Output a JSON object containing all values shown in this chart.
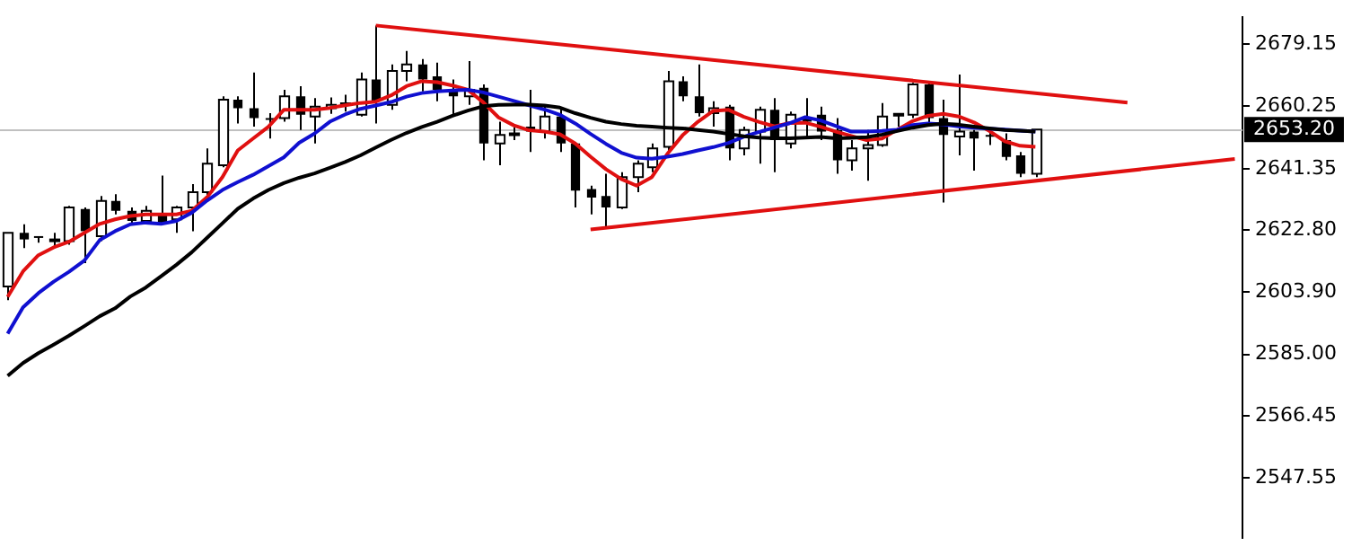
{
  "chart_data": {
    "type": "candlestick",
    "colors": [
      "#ffffff",
      "#000000",
      "#000000",
      "#ffffff",
      "#ffffff",
      "#000000",
      "#ffffff",
      "#000000",
      "#000000",
      "#ffffff",
      "#000000",
      "#ffffff",
      "#ffffff",
      "#ffffff",
      "#ffffff",
      "#000000",
      "#000000",
      "#000000",
      "#ffffff",
      "#000000",
      "#ffffff",
      "#ffffff",
      "#ffffff",
      "#ffffff",
      "#000000",
      "#ffffff",
      "#ffffff",
      "#000000",
      "#000000",
      "#000000",
      "#ffffff",
      "#000000",
      "#ffffff",
      "#ffffff",
      "#000000",
      "#ffffff",
      "#000000",
      "#000000",
      "#000000",
      "#000000",
      "#ffffff",
      "#ffffff",
      "#ffffff",
      "#ffffff",
      "#000000",
      "#000000",
      "#ffffff",
      "#000000",
      "#ffffff",
      "#ffffff",
      "#000000",
      "#ffffff",
      "#000000",
      "#000000",
      "#000000",
      "#ffffff",
      "#ffffff",
      "#ffffff",
      "#ffffff",
      "#ffffff",
      "#000000",
      "#000000",
      "#ffffff",
      "#000000",
      "#000000",
      "#000000",
      "#000000",
      "#ffffff",
      null,
      null,
      null,
      null,
      null,
      null,
      null,
      null,
      null,
      null,
      null,
      null,
      null
    ],
    "categories": [
      null,
      null,
      null,
      null,
      null,
      null,
      null,
      null,
      null,
      null,
      null,
      null,
      null,
      null,
      null,
      null,
      null,
      null,
      null,
      null,
      null,
      null,
      null,
      null,
      null,
      null,
      null,
      null,
      null,
      null,
      null,
      null,
      null,
      null,
      null,
      null,
      null,
      null,
      null,
      null,
      null,
      null,
      null,
      null,
      null,
      null,
      null,
      null,
      null,
      null,
      null,
      null,
      null,
      null,
      null,
      null,
      null,
      null,
      null,
      null,
      null,
      null,
      null,
      null,
      null,
      null,
      null,
      null,
      null,
      null,
      null,
      null,
      null,
      null,
      null,
      null,
      null,
      null,
      null,
      null,
      null
    ],
    "ohlc": [
      [
        2605.6,
        2621.9,
        2601.5,
        2621.9
      ],
      [
        2621.9,
        2624.5,
        2617.3,
        2619.9
      ],
      [
        2620.9,
        2620.9,
        2618.9,
        2620.4
      ],
      [
        2619.4,
        2621.9,
        2617.3,
        2619.9
      ],
      [
        2619.4,
        2630.1,
        2618.3,
        2629.6
      ],
      [
        2629.1,
        2629.6,
        2612.7,
        2622.4
      ],
      [
        2620.9,
        2633.1,
        2619.4,
        2631.6
      ],
      [
        2631.6,
        2633.6,
        2627.5,
        2628.6
      ],
      [
        2628.6,
        2629.6,
        2624.5,
        2625.5
      ],
      [
        2625.5,
        2630.1,
        2624.5,
        2628.6
      ],
      [
        2627.5,
        2639.3,
        2624.5,
        2625.0
      ],
      [
        2626.0,
        2630.1,
        2621.9,
        2629.6
      ],
      [
        2629.6,
        2636.7,
        2622.4,
        2634.2
      ],
      [
        2634.2,
        2647.5,
        2633.1,
        2642.9
      ],
      [
        2642.4,
        2663.3,
        2641.8,
        2662.3
      ],
      [
        2662.3,
        2663.3,
        2655.1,
        2659.7
      ],
      [
        2659.7,
        2670.5,
        2654.1,
        2656.7
      ],
      [
        2656.7,
        2658.2,
        2650.5,
        2656.2
      ],
      [
        2656.7,
        2665.3,
        2655.6,
        2663.3
      ],
      [
        2663.3,
        2666.4,
        2653.1,
        2657.7
      ],
      [
        2657.2,
        2662.8,
        2649.0,
        2660.2
      ],
      [
        2659.7,
        2663.0,
        2658.0,
        2660.7
      ],
      [
        2660.7,
        2663.8,
        2658.7,
        2661.2
      ],
      [
        2657.7,
        2670.5,
        2657.2,
        2668.4
      ],
      [
        2668.4,
        2684.8,
        2655.1,
        2661.8
      ],
      [
        2660.7,
        2673.0,
        2659.2,
        2671.0
      ],
      [
        2671.0,
        2677.1,
        2667.9,
        2673.0
      ],
      [
        2673.0,
        2674.6,
        2664.8,
        2668.4
      ],
      [
        2669.4,
        2673.5,
        2661.8,
        2665.3
      ],
      [
        2665.3,
        2668.4,
        2657.7,
        2663.3
      ],
      [
        2663.3,
        2674.0,
        2660.7,
        2665.3
      ],
      [
        2665.9,
        2666.9,
        2643.9,
        2649.0
      ],
      [
        2649.0,
        2655.6,
        2642.4,
        2651.6
      ],
      [
        2651.6,
        2654.0,
        2650.0,
        2652.1
      ],
      [
        2654.1,
        2665.3,
        2646.4,
        2652.6
      ],
      [
        2652.6,
        2660.2,
        2650.5,
        2657.2
      ],
      [
        2657.2,
        2659.7,
        2646.4,
        2649.0
      ],
      [
        2649.0,
        2649.5,
        2629.6,
        2634.7
      ],
      [
        2635.2,
        2636.2,
        2627.5,
        2632.6
      ],
      [
        2633.1,
        2639.8,
        2623.5,
        2629.6
      ],
      [
        2629.6,
        2640.3,
        2629.1,
        2638.8
      ],
      [
        2638.8,
        2643.9,
        2634.2,
        2642.9
      ],
      [
        2641.8,
        2649.0,
        2640.3,
        2647.5
      ],
      [
        2648.0,
        2671.0,
        2646.4,
        2667.9
      ],
      [
        2667.9,
        2669.4,
        2661.8,
        2663.3
      ],
      [
        2663.3,
        2673.0,
        2657.2,
        2658.2
      ],
      [
        2658.2,
        2661.8,
        2654.1,
        2659.7
      ],
      [
        2660.2,
        2660.7,
        2643.9,
        2647.5
      ],
      [
        2647.5,
        2654.1,
        2645.4,
        2653.1
      ],
      [
        2652.6,
        2660.2,
        2642.9,
        2659.2
      ],
      [
        2659.2,
        2662.8,
        2640.3,
        2650.0
      ],
      [
        2649.0,
        2658.7,
        2647.5,
        2657.7
      ],
      [
        2656.7,
        2662.8,
        2650.5,
        2655.6
      ],
      [
        2657.7,
        2660.2,
        2650.0,
        2652.6
      ],
      [
        2653.1,
        2656.7,
        2639.8,
        2643.9
      ],
      [
        2643.9,
        2650.0,
        2640.8,
        2647.5
      ],
      [
        2647.5,
        2653.1,
        2637.7,
        2648.5
      ],
      [
        2648.5,
        2661.3,
        2648.0,
        2657.2
      ],
      [
        2657.5,
        2658.2,
        2654.1,
        2658.0
      ],
      [
        2657.7,
        2667.4,
        2656.7,
        2666.9
      ],
      [
        2666.9,
        2667.9,
        2654.6,
        2656.7
      ],
      [
        2656.7,
        2662.3,
        2631.1,
        2651.6
      ],
      [
        2651.1,
        2669.9,
        2645.4,
        2652.6
      ],
      [
        2652.6,
        2653.1,
        2640.8,
        2650.5
      ],
      [
        2651.6,
        2652.6,
        2648.5,
        2651.1
      ],
      [
        2650.0,
        2652.1,
        2643.9,
        2644.9
      ],
      [
        2645.4,
        2646.4,
        2638.8,
        2639.8
      ],
      [
        2639.8,
        2653.2,
        2638.8,
        2653.2
      ],
      null,
      null,
      null,
      null,
      null,
      null,
      null,
      null,
      null,
      null,
      null,
      null,
      null
    ],
    "series": [
      {
        "type": "line",
        "color": "#000000",
        "values": [
          2578.5,
          2582.4,
          2585.4,
          2588.0,
          2590.7,
          2593.6,
          2596.6,
          2599.0,
          2602.6,
          2605.3,
          2608.7,
          2612.2,
          2616.0,
          2620.4,
          2624.8,
          2629.2,
          2632.3,
          2634.9,
          2637.0,
          2638.6,
          2639.9,
          2641.6,
          2643.4,
          2645.4,
          2647.8,
          2650.1,
          2652.2,
          2654.0,
          2655.6,
          2657.4,
          2659.0,
          2660.3,
          2660.7,
          2660.8,
          2660.8,
          2660.5,
          2659.9,
          2658.2,
          2656.8,
          2655.6,
          2654.9,
          2654.4,
          2654.1,
          2653.8,
          2653.6,
          2653.1,
          2652.6,
          2651.9,
          2651.2,
          2650.8,
          2650.6,
          2650.6,
          2650.8,
          2651.0,
          2650.6,
          2650.7,
          2650.9,
          2651.7,
          2652.8,
          2653.8,
          2654.6,
          2655.0,
          2654.7,
          2654.1,
          2653.6,
          2653.1,
          2652.9,
          2652.6,
          null,
          null,
          null,
          null,
          null,
          null,
          null,
          null,
          null,
          null,
          null,
          null,
          null
        ]
      },
      {
        "type": "line",
        "color": "#1010d0",
        "values": [
          2591.3,
          2599.3,
          2603.6,
          2607.1,
          2610.1,
          2613.5,
          2619.7,
          2622.4,
          2624.5,
          2625.0,
          2624.6,
          2625.5,
          2628.0,
          2631.7,
          2634.9,
          2637.3,
          2639.5,
          2642.1,
          2644.8,
          2649.2,
          2652.0,
          2655.6,
          2657.8,
          2659.5,
          2660.5,
          2661.6,
          2663.2,
          2664.3,
          2664.8,
          2665.1,
          2665.3,
          2664.5,
          2663.2,
          2661.9,
          2660.6,
          2659.3,
          2657.7,
          2655.1,
          2651.9,
          2648.9,
          2646.2,
          2644.7,
          2644.4,
          2645.0,
          2645.8,
          2646.9,
          2647.9,
          2649.2,
          2651.1,
          2652.5,
          2653.9,
          2655.2,
          2657.0,
          2656.0,
          2654.3,
          2652.6,
          2652.6,
          2652.8,
          2653.2,
          2654.6,
          2655.1,
          2654.8,
          2654.2,
          2653.8,
          2653.5,
          2653.2,
          2652.9,
          2652.6,
          null,
          null,
          null,
          null,
          null,
          null,
          null,
          null,
          null,
          null,
          null,
          null,
          null
        ]
      },
      {
        "type": "line",
        "color": "#e01010",
        "values": [
          2602.5,
          2610.2,
          2615.1,
          2617.5,
          2619.2,
          2621.9,
          2624.6,
          2626.0,
          2627.0,
          2627.5,
          2627.5,
          2627.5,
          2628.6,
          2632.7,
          2638.8,
          2646.9,
          2650.5,
          2654.1,
          2659.2,
          2659.2,
          2659.2,
          2659.8,
          2660.6,
          2661.3,
          2661.7,
          2663.6,
          2666.4,
          2667.9,
          2667.6,
          2666.6,
          2665.3,
          2661.5,
          2656.9,
          2654.5,
          2653.0,
          2652.6,
          2651.8,
          2649.0,
          2645.0,
          2641.2,
          2638.2,
          2636.2,
          2638.8,
          2645.8,
          2651.5,
          2655.6,
          2658.9,
          2659.2,
          2657.1,
          2655.5,
          2654.2,
          2655.2,
          2655.3,
          2654.1,
          2652.6,
          2651.3,
          2650.0,
          2650.5,
          2653.2,
          2655.8,
          2657.4,
          2658.0,
          2657.2,
          2655.4,
          2652.8,
          2649.7,
          2648.3,
          2648.0,
          null,
          null,
          null,
          null,
          null,
          null,
          null,
          null,
          null,
          null,
          null,
          null,
          null
        ]
      },
      {
        "type": "line",
        "color": "#e01010",
        "values": [
          null,
          null,
          null,
          null,
          null,
          null,
          null,
          null,
          null,
          null,
          null,
          null,
          null,
          null,
          null,
          null,
          null,
          null,
          null,
          null,
          null,
          null,
          null,
          null,
          2684.8,
          null,
          null,
          null,
          null,
          null,
          null,
          null,
          null,
          null,
          null,
          null,
          null,
          null,
          null,
          null,
          null,
          null,
          null,
          null,
          null,
          null,
          null,
          null,
          null,
          null,
          null,
          null,
          null,
          null,
          null,
          null,
          null,
          null,
          null,
          null,
          null,
          null,
          null,
          null,
          null,
          null,
          null,
          null,
          null,
          null,
          null,
          null,
          null,
          2661.4,
          null,
          null,
          null,
          null,
          null,
          null,
          null
        ]
      },
      {
        "type": "line",
        "color": "#e01010",
        "values": [
          null,
          null,
          null,
          null,
          null,
          null,
          null,
          null,
          null,
          null,
          null,
          null,
          null,
          null,
          null,
          null,
          null,
          null,
          null,
          null,
          null,
          null,
          null,
          null,
          null,
          null,
          null,
          null,
          null,
          null,
          null,
          null,
          null,
          null,
          null,
          null,
          null,
          null,
          2622.9,
          null,
          null,
          null,
          null,
          null,
          null,
          null,
          null,
          null,
          null,
          null,
          null,
          null,
          null,
          null,
          null,
          null,
          null,
          null,
          null,
          null,
          null,
          null,
          null,
          null,
          null,
          null,
          null,
          null,
          null,
          null,
          null,
          null,
          null,
          null,
          null,
          null,
          null,
          null,
          null,
          null,
          2644.3
        ]
      }
    ],
    "ylim": [
      2529.4,
      2687.3
    ],
    "yticks": [
      2547.55,
      2566.45,
      {
        "value": 2585,
        "label": "2585.00"
      },
      {
        "value": 2603.9,
        "label": "2603.90"
      },
      {
        "value": 2622.8,
        "label": "2622.80"
      },
      2641.35,
      2660.25,
      2679.15
    ],
    "tick_labels": "y",
    "grid": false,
    "legend": false,
    "ref_lines": [
      {
        "axis": "y",
        "value": 2653.2,
        "label": "2653.20",
        "color": "#c0c0c0"
      }
    ]
  }
}
